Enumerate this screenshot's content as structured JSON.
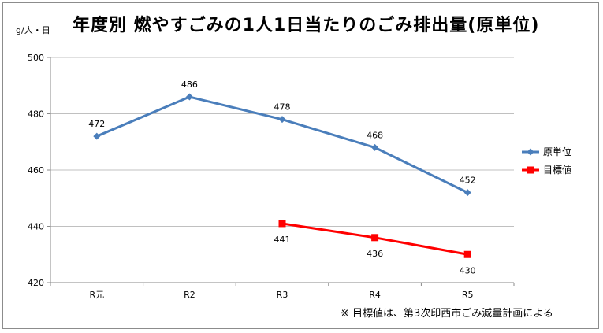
{
  "title": "年度別 燃やすごみの1人1日当たりのごみ排出量(原単位)",
  "unit_label": "g/人・日",
  "footnote": "※ 目標値は、第3次印西市ごみ減量計画による",
  "colors": {
    "series1": "#4a7ebb",
    "series2": "#ff0000",
    "grid": "#c0c0c0"
  },
  "chart_data": {
    "type": "line",
    "categories": [
      "R元",
      "R2",
      "R3",
      "R4",
      "R5"
    ],
    "ylim": [
      420,
      500
    ],
    "yticks": [
      420,
      440,
      460,
      480,
      500
    ],
    "grid": true,
    "legend_position": "right",
    "series": [
      {
        "name": "原単位",
        "marker": "diamond",
        "color": "#4a7ebb",
        "values": [
          472,
          486,
          478,
          468,
          452
        ]
      },
      {
        "name": "目標値",
        "marker": "square",
        "color": "#ff0000",
        "values": [
          null,
          null,
          441,
          436,
          430
        ]
      }
    ]
  }
}
